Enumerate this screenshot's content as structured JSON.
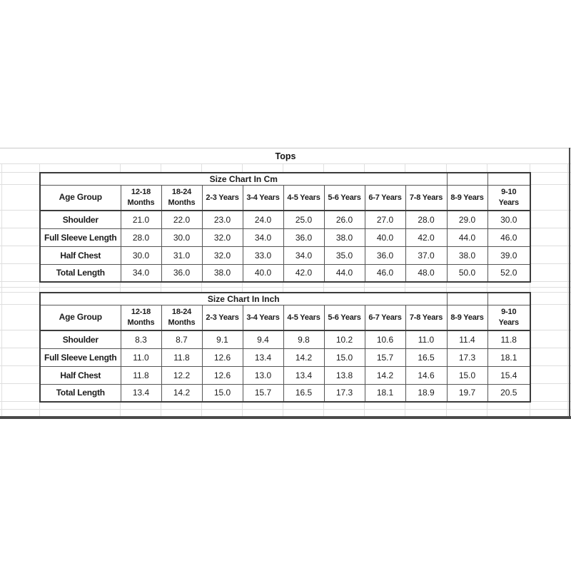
{
  "sheet": {
    "title": "Tops"
  },
  "chart_data": [
    {
      "type": "table",
      "title": "Size Chart In Cm",
      "corner_header": "Age Group",
      "columns": [
        "12-18\nMonths",
        "18-24\nMonths",
        "2-3 Years",
        "3-4 Years",
        "4-5 Years",
        "5-6 Years",
        "6-7 Years",
        "7-8 Years",
        "8-9 Years",
        "9-10\nYears"
      ],
      "rows": [
        {
          "label": "Shoulder",
          "values": [
            "21.0",
            "22.0",
            "23.0",
            "24.0",
            "25.0",
            "26.0",
            "27.0",
            "28.0",
            "29.0",
            "30.0"
          ]
        },
        {
          "label": "Full Sleeve Length",
          "values": [
            "28.0",
            "30.0",
            "32.0",
            "34.0",
            "36.0",
            "38.0",
            "40.0",
            "42.0",
            "44.0",
            "46.0"
          ]
        },
        {
          "label": "Half Chest",
          "values": [
            "30.0",
            "31.0",
            "32.0",
            "33.0",
            "34.0",
            "35.0",
            "36.0",
            "37.0",
            "38.0",
            "39.0"
          ]
        },
        {
          "label": "Total Length",
          "values": [
            "34.0",
            "36.0",
            "38.0",
            "40.0",
            "42.0",
            "44.0",
            "46.0",
            "48.0",
            "50.0",
            "52.0"
          ]
        }
      ]
    },
    {
      "type": "table",
      "title": "Size Chart In Inch",
      "corner_header": "Age Group",
      "columns": [
        "12-18\nMonths",
        "18-24\nMonths",
        "2-3 Years",
        "3-4 Years",
        "4-5 Years",
        "5-6 Years",
        "6-7 Years",
        "7-8 Years",
        "8-9 Years",
        "9-10\nYears"
      ],
      "rows": [
        {
          "label": "Shoulder",
          "values": [
            "8.3",
            "8.7",
            "9.1",
            "9.4",
            "9.8",
            "10.2",
            "10.6",
            "11.0",
            "11.4",
            "11.8"
          ]
        },
        {
          "label": "Full Sleeve Length",
          "values": [
            "11.0",
            "11.8",
            "12.6",
            "13.4",
            "14.2",
            "15.0",
            "15.7",
            "16.5",
            "17.3",
            "18.1"
          ]
        },
        {
          "label": "Half Chest",
          "values": [
            "11.8",
            "12.2",
            "12.6",
            "13.0",
            "13.4",
            "13.8",
            "14.2",
            "14.6",
            "15.0",
            "15.4"
          ]
        },
        {
          "label": "Total Length",
          "values": [
            "13.4",
            "14.2",
            "15.0",
            "15.7",
            "16.5",
            "17.3",
            "18.1",
            "18.9",
            "19.7",
            "20.5"
          ]
        }
      ]
    }
  ]
}
